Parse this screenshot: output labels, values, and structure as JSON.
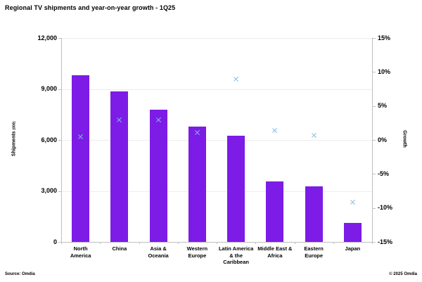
{
  "header": {
    "title": "Regional TV shipments and year-on-year growth - 1Q25"
  },
  "footer": {
    "source": "Source: Omdia",
    "copyright": "© 2025 Omdia"
  },
  "colors": {
    "bar": "#7c1ce6",
    "marker": "#85badf",
    "gridline": "#ededed",
    "axis": "#bfbfbf"
  },
  "chart_data": {
    "type": "bar",
    "title": "Regional TV shipments and year-on-year growth - 1Q25",
    "categories": [
      "North\nAmerica",
      "China",
      "Asia &\nOceania",
      "Western\nEurope",
      "Latin America\n& the\nCaribbean",
      "Middle East &\nAfrica",
      "Eastern\nEurope",
      "Japan"
    ],
    "series": [
      {
        "name": "Shipments",
        "type": "bar",
        "axis": "left",
        "values": [
          9800,
          8850,
          7800,
          6800,
          6250,
          3550,
          3250,
          1100
        ]
      },
      {
        "name": "Growth",
        "type": "scatter",
        "marker": "x",
        "axis": "right",
        "values": [
          0.5,
          3.0,
          2.9,
          1.1,
          9.0,
          1.4,
          0.7,
          -9.2
        ]
      }
    ],
    "left_axis": {
      "label": "Shipments",
      "label_sub": "(000)",
      "min": 0,
      "max": 12000,
      "tick_values": [
        0,
        3000,
        6000,
        9000,
        12000
      ],
      "tick_labels": [
        "0",
        "3,000",
        "6,000",
        "9,000",
        "12,000"
      ]
    },
    "right_axis": {
      "label": "Growth",
      "min": -15,
      "max": 15,
      "tick_values": [
        -15,
        -10,
        -5,
        0,
        5,
        10,
        15
      ],
      "tick_labels": [
        "-15%",
        "-10%",
        "-5%",
        "0%",
        "5%",
        "10%",
        "15%"
      ]
    },
    "grid": true,
    "legend": "none"
  }
}
